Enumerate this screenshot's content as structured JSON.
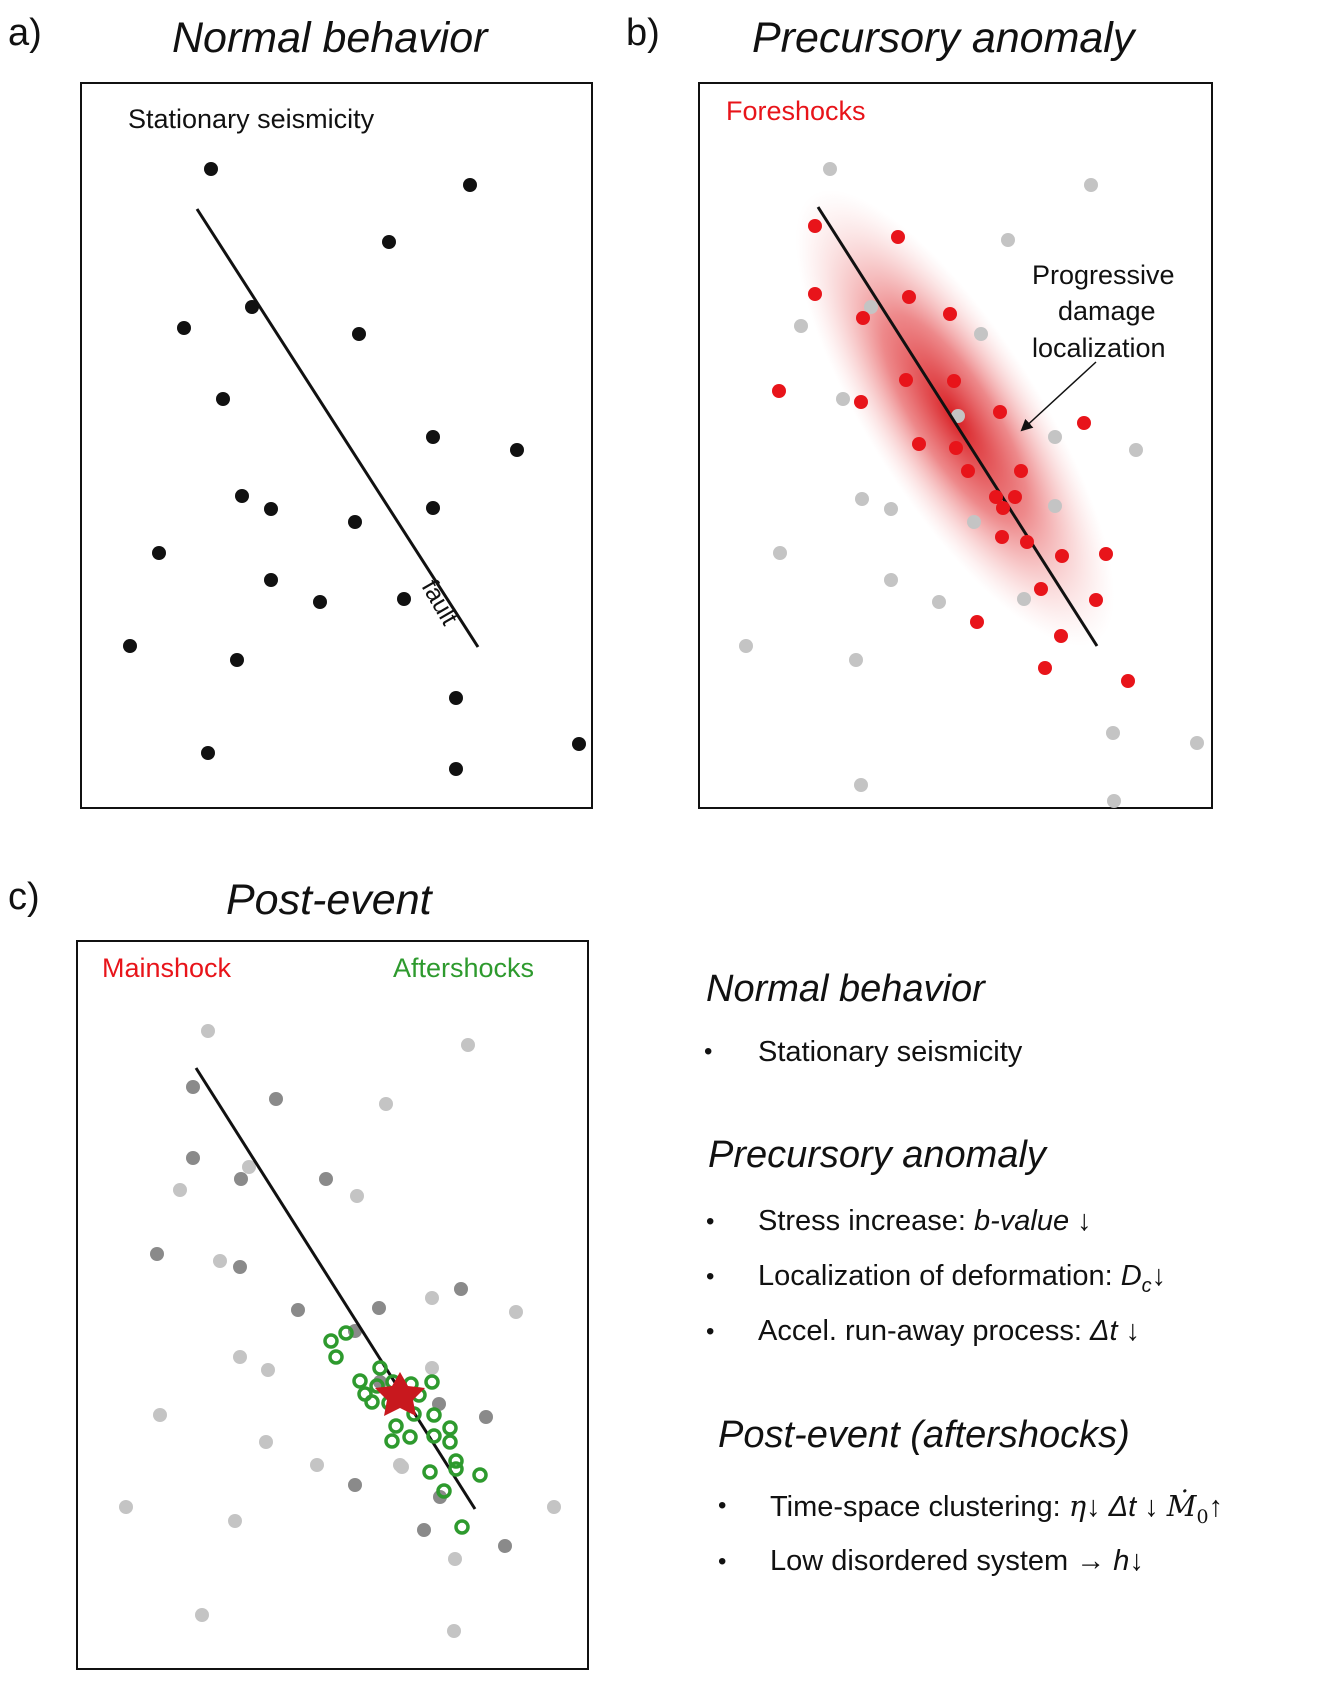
{
  "panels": {
    "a": {
      "letter": "a)",
      "title": "Normal behavior",
      "label": "Stationary seismicity",
      "fault_label": "fault"
    },
    "b": {
      "letter": "b)",
      "title": "Precursory anomaly",
      "label": "Foreshocks",
      "annotation": [
        "Progressive",
        "damage",
        "localization"
      ]
    },
    "c": {
      "letter": "c)",
      "title": "Post-event",
      "label_main": "Mainshock",
      "label_after": "Aftershocks"
    }
  },
  "legend": {
    "sections": [
      {
        "heading": "Normal behavior",
        "items": [
          {
            "text": "Stationary seismicity"
          }
        ]
      },
      {
        "heading": "Precursory anomaly",
        "items": [
          {
            "text": "Stress increase: ",
            "em": "b-value",
            "tail": " ↓"
          },
          {
            "text": "Localization of deformation: ",
            "em": "D",
            "sub": "c",
            "tail": "↓"
          },
          {
            "text": "Accel. run-away process: ",
            "em": "Δt",
            "tail": " ↓"
          }
        ]
      },
      {
        "heading": "Post-event (aftershocks)",
        "items": [
          {
            "text": "Time-space clustering: ",
            "em1": "η",
            "t1": "↓  ",
            "em2": "Δt",
            "t2": " ↓  ",
            "em3": "Ṁ",
            "sub3": "0",
            "t3": "↑"
          },
          {
            "text": "Low disordered system ",
            "arrow": "→",
            "em": " h",
            "tail": "↓"
          }
        ]
      }
    ],
    "bullet": "•"
  },
  "colors": {
    "black": "#111111",
    "red": "#e8141a",
    "gray": "#c4c4c4",
    "darkgray": "#888888",
    "green": "#2e9a2e",
    "star": "#c8181e"
  }
}
